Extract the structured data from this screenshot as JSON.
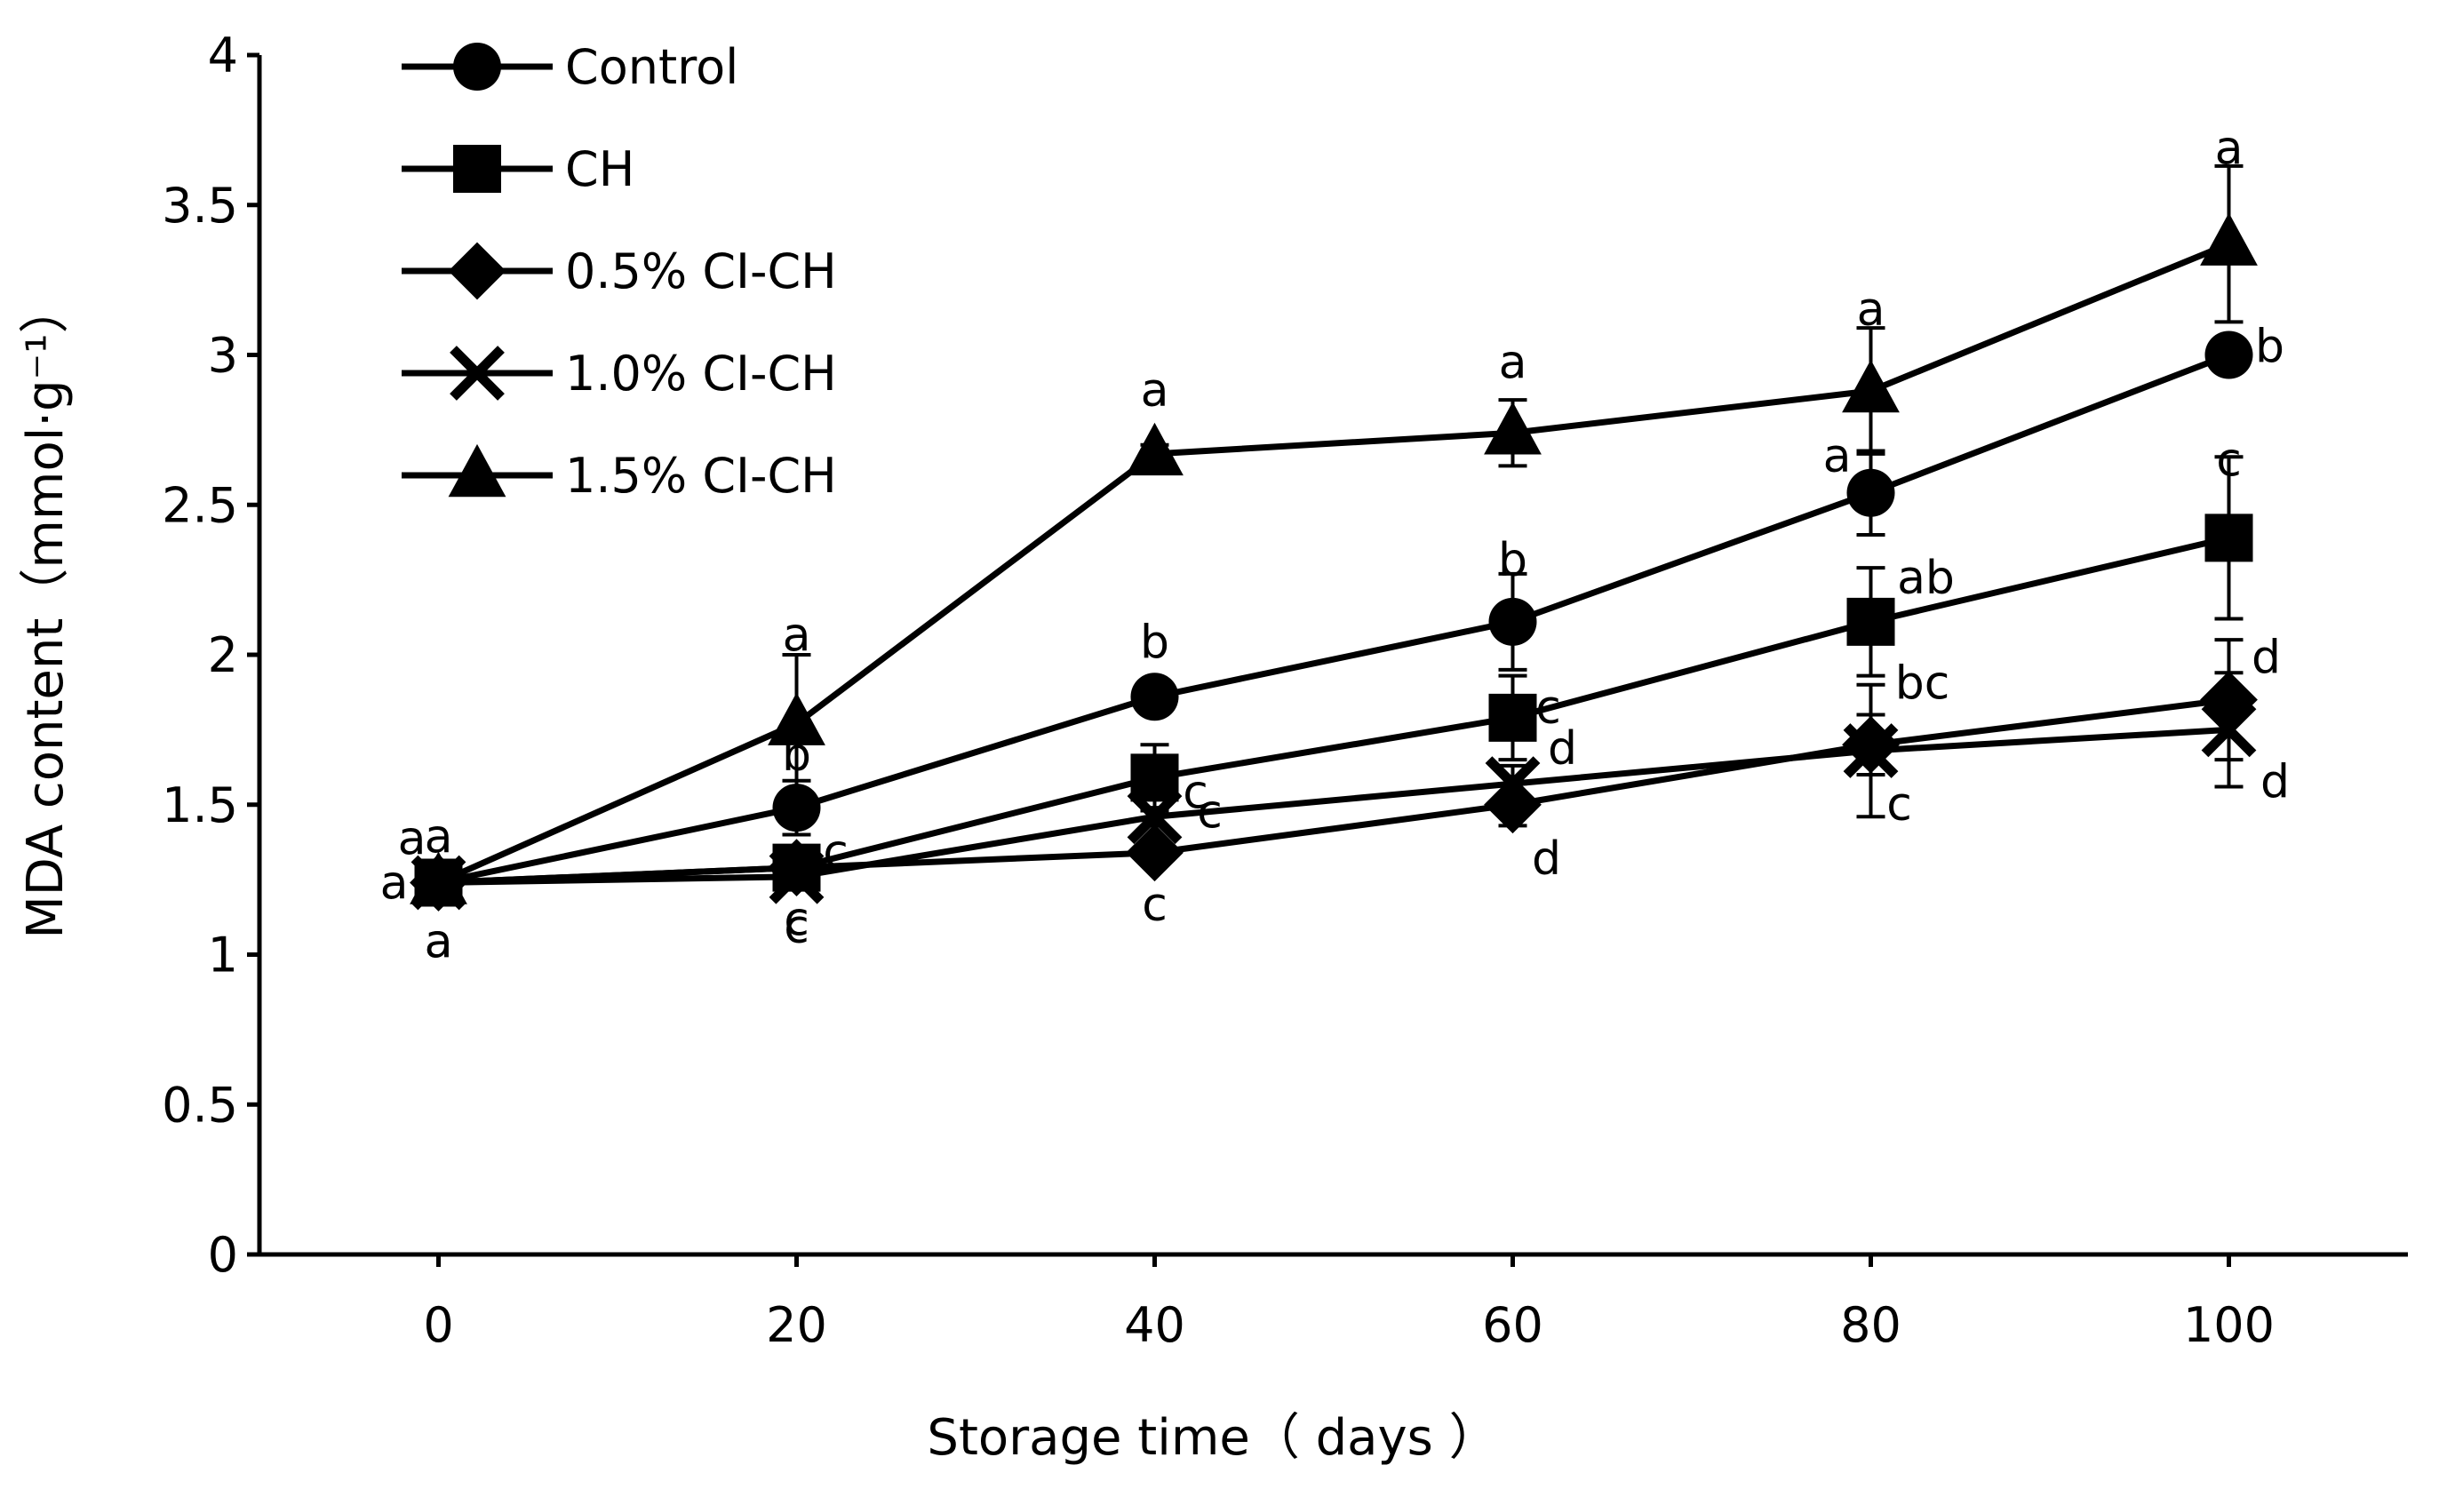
{
  "chart_data": {
    "type": "line",
    "xlabel": "Storage time（ days ）",
    "ylabel": "MDA content（mmol·g⁻¹）",
    "xlim": [
      -10,
      110
    ],
    "ylim": [
      0,
      4
    ],
    "x_ticks": [
      0,
      20,
      40,
      60,
      80,
      100
    ],
    "y_ticks": [
      0,
      0.5,
      1,
      1.5,
      2,
      2.5,
      3,
      3.5,
      4
    ],
    "y_tick_labels": [
      "0",
      "0.5",
      "1",
      "1.5",
      "2",
      "2.5",
      "3",
      "3.5",
      "4"
    ],
    "grid": false,
    "legend_position": "top-left",
    "x": [
      0,
      20,
      40,
      60,
      80,
      100
    ],
    "series": [
      {
        "name": "Control",
        "marker": "circle",
        "values": [
          1.24,
          1.49,
          1.86,
          2.11,
          2.54,
          3.0
        ],
        "errors": [
          0.03,
          0.09,
          0.03,
          0.16,
          0.14,
          0.03
        ],
        "letters": [
          "a",
          "b",
          "b",
          "b",
          "a",
          "b"
        ]
      },
      {
        "name": "CH",
        "marker": "square",
        "values": [
          1.24,
          1.29,
          1.59,
          1.79,
          2.11,
          2.39
        ],
        "errors": [
          0.03,
          0.04,
          0.11,
          0.14,
          0.18,
          0.27
        ],
        "letters": [
          "a",
          "c",
          "c",
          "c",
          "ab",
          "c"
        ]
      },
      {
        "name": "0.5% CI-CH",
        "marker": "diamond",
        "values": [
          1.24,
          1.29,
          1.34,
          1.5,
          1.7,
          1.85
        ],
        "errors": [
          0.03,
          0.04,
          0.03,
          0.07,
          0.1,
          0.2
        ],
        "letters": [
          "a",
          "c",
          "c",
          "d",
          "bc",
          "d"
        ]
      },
      {
        "name": "1.0% CI-CH",
        "marker": "cross",
        "values": [
          1.24,
          1.26,
          1.46,
          1.57,
          1.68,
          1.75
        ],
        "errors": [
          0.03,
          0.04,
          0.03,
          0.06,
          0.22,
          0.19
        ],
        "letters": [
          "a",
          "c",
          "c",
          "d",
          "c",
          "d"
        ]
      },
      {
        "name": "1.5% CI-CH",
        "marker": "triangle",
        "values": [
          1.24,
          1.77,
          2.67,
          2.74,
          2.88,
          3.37
        ],
        "errors": [
          0.03,
          0.23,
          0.03,
          0.11,
          0.21,
          0.26
        ],
        "letters": [
          "a",
          "a",
          "a",
          "a",
          "a",
          "a"
        ]
      }
    ]
  }
}
